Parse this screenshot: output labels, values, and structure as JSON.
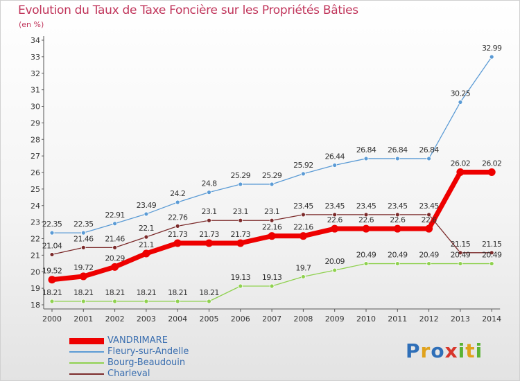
{
  "title": "Evolution du Taux de Taxe Foncière sur les Propriétés Bâties",
  "subtitle": "(en %)",
  "logo": {
    "letters": [
      {
        "t": "P",
        "color": "#2f6fb8"
      },
      {
        "t": "r",
        "color": "#e0a21c"
      },
      {
        "t": "o",
        "color": "#2f6fb8"
      },
      {
        "t": "x",
        "color": "#d8362b"
      },
      {
        "t": "i",
        "color": "#5bb335"
      },
      {
        "t": "t",
        "color": "#e0a21c"
      },
      {
        "t": "i",
        "color": "#5bb335"
      }
    ]
  },
  "chart_data": {
    "type": "line",
    "title": "Evolution du Taux de Taxe Foncière sur les Propriétés Bâties",
    "ylabel": "(en %)",
    "x": [
      "2000",
      "2001",
      "2002",
      "2003",
      "2004",
      "2005",
      "2006",
      "2007",
      "2008",
      "2009",
      "2010",
      "2011",
      "2012",
      "2013",
      "2014"
    ],
    "ylim": [
      18,
      34
    ],
    "yticks": [
      18,
      19,
      20,
      21,
      22,
      23,
      24,
      25,
      26,
      27,
      28,
      29,
      30,
      31,
      32,
      33,
      34
    ],
    "grid": false,
    "legend_position": "bottom-left",
    "series": [
      {
        "name": "VANDRIMARE",
        "color": "#ee0000",
        "width": 7,
        "values": [
          19.52,
          19.72,
          20.29,
          21.1,
          21.73,
          21.73,
          21.73,
          22.16,
          22.16,
          22.6,
          22.6,
          22.6,
          22.6,
          26.02,
          26.02
        ],
        "labels": [
          "19.52",
          "19.72",
          "20.29",
          "21.1",
          "21.73",
          "21.73",
          "21.73",
          "22.16",
          "22.16",
          "22.6",
          "22.6",
          "22.6",
          "22.6",
          "26.02",
          "26.02"
        ]
      },
      {
        "name": "Fleury-sur-Andelle",
        "color": "#5b9bd5",
        "width": 1.3,
        "values": [
          22.35,
          22.35,
          22.91,
          23.49,
          24.2,
          24.8,
          25.29,
          25.29,
          25.92,
          26.44,
          26.84,
          26.84,
          26.84,
          30.25,
          32.99
        ],
        "labels": [
          "22.35",
          "22.35",
          "22.91",
          "23.49",
          "24.2",
          "24.8",
          "25.29",
          "25.29",
          "25.92",
          "26.44",
          "26.84",
          "26.84",
          "26.84",
          "30.25",
          "32.99"
        ]
      },
      {
        "name": "Bourg-Beaudouin",
        "color": "#8fd14f",
        "width": 1.3,
        "values": [
          18.21,
          18.21,
          18.21,
          18.21,
          18.21,
          18.21,
          19.13,
          19.13,
          19.7,
          20.09,
          20.49,
          20.49,
          20.49,
          20.49,
          20.49
        ],
        "labels": [
          "18.21",
          "18.21",
          "18.21",
          "18.21",
          "18.21",
          "18.21",
          "19.13",
          "19.13",
          "19.7",
          "20.09",
          "20.49",
          "20.49",
          "20.49",
          "20.49",
          "20.49"
        ]
      },
      {
        "name": "Charleval",
        "color": "#7b2a2a",
        "width": 1.3,
        "values": [
          21.04,
          21.46,
          21.46,
          22.1,
          22.76,
          23.1,
          23.1,
          23.1,
          23.45,
          23.45,
          23.45,
          23.45,
          23.45,
          21.15,
          21.15
        ],
        "labels": [
          "21.04",
          "21.46",
          "21.46",
          "22.1",
          "22.76",
          "23.1",
          "23.1",
          "23.1",
          "23.45",
          "23.45",
          "23.45",
          "23.45",
          "23.45",
          "21.15",
          "21.15"
        ]
      }
    ]
  }
}
